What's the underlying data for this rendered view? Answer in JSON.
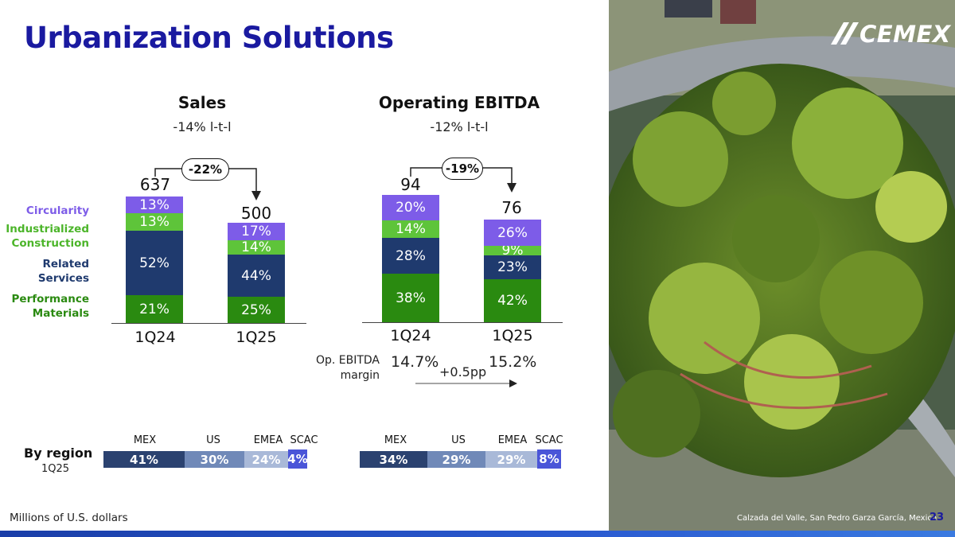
{
  "title": "Urbanization Solutions",
  "logo_text": "CEMEX",
  "footnote": "Millions of U.S. dollars",
  "photo_caption": "Calzada del Valle, San Pedro Garza García, Mexico",
  "page_number": "23",
  "categories_legend": [
    {
      "label_lines": [
        "Circularity"
      ],
      "color": "#7d5ce8"
    },
    {
      "label_lines": [
        "Industrialized",
        "Construction"
      ],
      "color": "#5ec43a"
    },
    {
      "label_lines": [
        "Related",
        "Services"
      ],
      "color": "#1f3a6e"
    },
    {
      "label_lines": [
        "Performance",
        "Materials"
      ],
      "color": "#2e8b17"
    }
  ],
  "colors": {
    "circularity": "#7d5ce8",
    "industrialized": "#5ec43a",
    "related": "#1f3a6e",
    "performance": "#2a8a10",
    "title": "#1a1aa0"
  },
  "chart_data": [
    {
      "type": "bar",
      "title": "Sales",
      "subtitle": "-14% l-t-l",
      "categories": [
        "1Q24",
        "1Q25"
      ],
      "totals": [
        637,
        500
      ],
      "change_label": "-22%",
      "series": [
        {
          "name": "Performance Materials",
          "values": [
            "21%",
            "25%"
          ]
        },
        {
          "name": "Related Services",
          "values": [
            "52%",
            "44%"
          ]
        },
        {
          "name": "Industrialized Construction",
          "values": [
            "13%",
            "14%"
          ]
        },
        {
          "name": "Circularity",
          "values": [
            "13%",
            "17%"
          ]
        }
      ]
    },
    {
      "type": "bar",
      "title": "Operating EBITDA",
      "subtitle": "-12% l-t-l",
      "categories": [
        "1Q24",
        "1Q25"
      ],
      "totals": [
        94,
        76
      ],
      "change_label": "-19%",
      "series": [
        {
          "name": "Performance Materials",
          "values": [
            "38%",
            "42%"
          ]
        },
        {
          "name": "Related Services",
          "values": [
            "28%",
            "23%"
          ]
        },
        {
          "name": "Industrialized Construction",
          "values": [
            "14%",
            "9%"
          ]
        },
        {
          "name": "Circularity",
          "values": [
            "20%",
            "26%"
          ]
        }
      ],
      "margin_label": [
        "Op. EBITDA",
        "margin"
      ],
      "margins": [
        "14.7%",
        "15.2%"
      ],
      "margin_change": "+0.5pp"
    }
  ],
  "by_region": {
    "label": "By region",
    "period": "1Q25",
    "headers": [
      "MEX",
      "US",
      "EMEA",
      "SCAC"
    ],
    "sales": [
      "41%",
      "30%",
      "24%",
      "4%"
    ],
    "ebitda": [
      "34%",
      "29%",
      "29%",
      "8%"
    ],
    "colors": [
      "#2b4270",
      "#7089b8",
      "#a9b9d8",
      "#4a55d8"
    ]
  }
}
